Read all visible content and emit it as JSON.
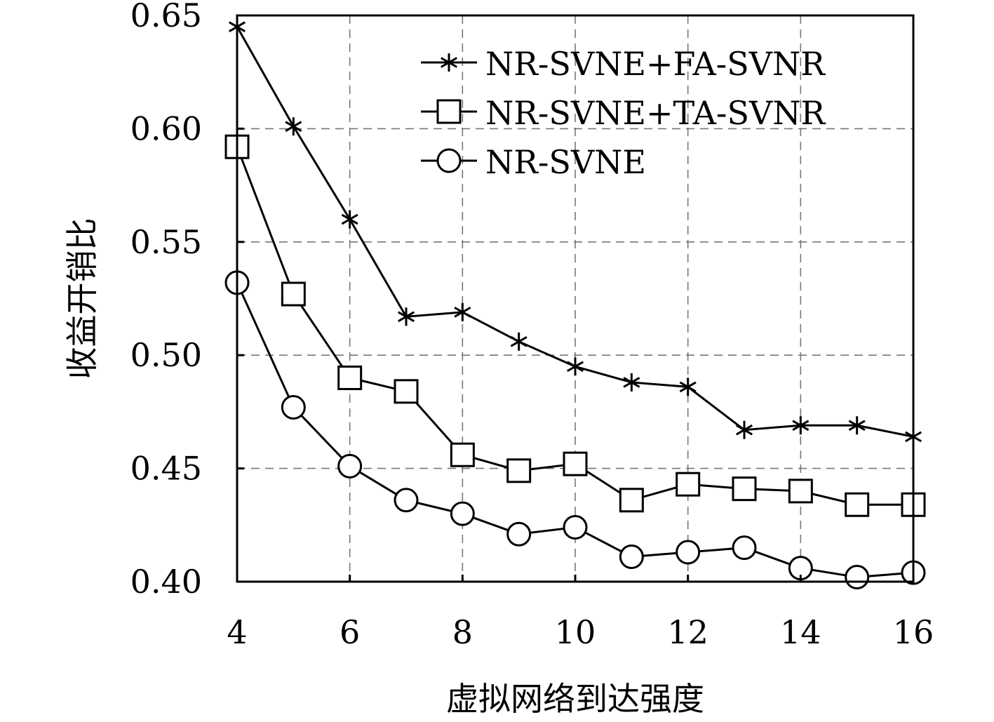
{
  "chart_data": {
    "type": "line",
    "title": "",
    "xlabel": "虚拟网络到达强度",
    "ylabel": "收益开销比",
    "x": [
      4,
      5,
      6,
      7,
      8,
      9,
      10,
      11,
      12,
      13,
      14,
      15,
      16
    ],
    "xlim": [
      4,
      16
    ],
    "ylim": [
      0.4,
      0.65
    ],
    "xticks": [
      4,
      6,
      8,
      10,
      12,
      14,
      16
    ],
    "xtick_labels": [
      "4",
      "6",
      "8",
      "10",
      "12",
      "14",
      "16"
    ],
    "yticks": [
      0.4,
      0.45,
      0.5,
      0.55,
      0.6,
      0.65
    ],
    "ytick_labels": [
      "0.40",
      "0.45",
      "0.50",
      "0.55",
      "0.60",
      "0.65"
    ],
    "grid": true,
    "legend_position": "top-right",
    "series": [
      {
        "name": "NR-SVNE+FA-SVNR",
        "marker": "asterisk",
        "values": [
          0.645,
          0.601,
          0.56,
          0.517,
          0.519,
          0.506,
          0.495,
          0.488,
          0.486,
          0.467,
          0.469,
          0.469,
          0.464
        ]
      },
      {
        "name": "NR-SVNE+TA-SVNR",
        "marker": "square",
        "values": [
          0.592,
          0.527,
          0.49,
          0.484,
          0.456,
          0.449,
          0.452,
          0.436,
          0.443,
          0.441,
          0.44,
          0.434,
          0.434
        ]
      },
      {
        "name": "NR-SVNE",
        "marker": "circle",
        "values": [
          0.532,
          0.477,
          0.451,
          0.436,
          0.43,
          0.421,
          0.424,
          0.411,
          0.413,
          0.415,
          0.406,
          0.402,
          0.404
        ]
      }
    ]
  }
}
